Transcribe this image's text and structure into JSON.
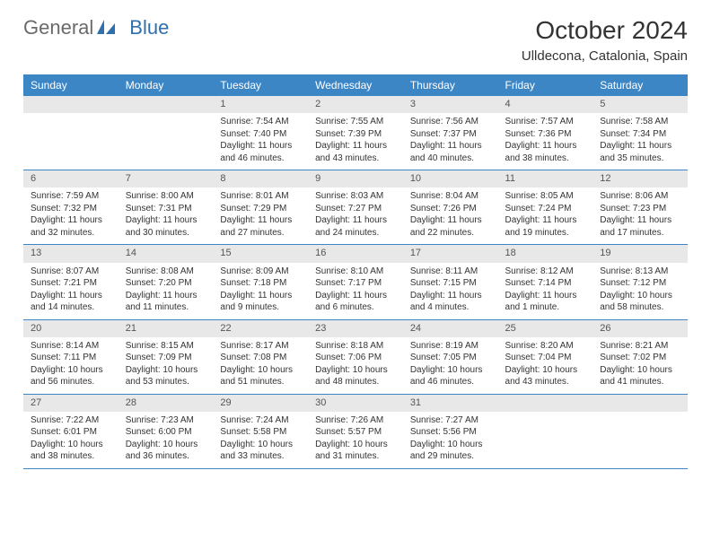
{
  "logo": {
    "text1": "General",
    "text2": "Blue"
  },
  "title": "October 2024",
  "subtitle": "Ulldecona, Catalonia, Spain",
  "daynames": [
    "Sunday",
    "Monday",
    "Tuesday",
    "Wednesday",
    "Thursday",
    "Friday",
    "Saturday"
  ],
  "colors": {
    "header_bg": "#3d86c6",
    "header_text": "#ffffff",
    "daynum_bg": "#e8e8e8",
    "border": "#3d86c6",
    "text": "#333333",
    "logo_gray": "#6a6a6a",
    "logo_blue": "#2f6fad"
  },
  "fontsize": {
    "title": 28,
    "subtitle": 15,
    "dayheader": 12,
    "daynum": 11,
    "daybody": 10
  },
  "weeks": [
    [
      {
        "n": "",
        "sr": "",
        "ss": "",
        "dl1": "",
        "dl2": ""
      },
      {
        "n": "",
        "sr": "",
        "ss": "",
        "dl1": "",
        "dl2": ""
      },
      {
        "n": "1",
        "sr": "Sunrise: 7:54 AM",
        "ss": "Sunset: 7:40 PM",
        "dl1": "Daylight: 11 hours",
        "dl2": "and 46 minutes."
      },
      {
        "n": "2",
        "sr": "Sunrise: 7:55 AM",
        "ss": "Sunset: 7:39 PM",
        "dl1": "Daylight: 11 hours",
        "dl2": "and 43 minutes."
      },
      {
        "n": "3",
        "sr": "Sunrise: 7:56 AM",
        "ss": "Sunset: 7:37 PM",
        "dl1": "Daylight: 11 hours",
        "dl2": "and 40 minutes."
      },
      {
        "n": "4",
        "sr": "Sunrise: 7:57 AM",
        "ss": "Sunset: 7:36 PM",
        "dl1": "Daylight: 11 hours",
        "dl2": "and 38 minutes."
      },
      {
        "n": "5",
        "sr": "Sunrise: 7:58 AM",
        "ss": "Sunset: 7:34 PM",
        "dl1": "Daylight: 11 hours",
        "dl2": "and 35 minutes."
      }
    ],
    [
      {
        "n": "6",
        "sr": "Sunrise: 7:59 AM",
        "ss": "Sunset: 7:32 PM",
        "dl1": "Daylight: 11 hours",
        "dl2": "and 32 minutes."
      },
      {
        "n": "7",
        "sr": "Sunrise: 8:00 AM",
        "ss": "Sunset: 7:31 PM",
        "dl1": "Daylight: 11 hours",
        "dl2": "and 30 minutes."
      },
      {
        "n": "8",
        "sr": "Sunrise: 8:01 AM",
        "ss": "Sunset: 7:29 PM",
        "dl1": "Daylight: 11 hours",
        "dl2": "and 27 minutes."
      },
      {
        "n": "9",
        "sr": "Sunrise: 8:03 AM",
        "ss": "Sunset: 7:27 PM",
        "dl1": "Daylight: 11 hours",
        "dl2": "and 24 minutes."
      },
      {
        "n": "10",
        "sr": "Sunrise: 8:04 AM",
        "ss": "Sunset: 7:26 PM",
        "dl1": "Daylight: 11 hours",
        "dl2": "and 22 minutes."
      },
      {
        "n": "11",
        "sr": "Sunrise: 8:05 AM",
        "ss": "Sunset: 7:24 PM",
        "dl1": "Daylight: 11 hours",
        "dl2": "and 19 minutes."
      },
      {
        "n": "12",
        "sr": "Sunrise: 8:06 AM",
        "ss": "Sunset: 7:23 PM",
        "dl1": "Daylight: 11 hours",
        "dl2": "and 17 minutes."
      }
    ],
    [
      {
        "n": "13",
        "sr": "Sunrise: 8:07 AM",
        "ss": "Sunset: 7:21 PM",
        "dl1": "Daylight: 11 hours",
        "dl2": "and 14 minutes."
      },
      {
        "n": "14",
        "sr": "Sunrise: 8:08 AM",
        "ss": "Sunset: 7:20 PM",
        "dl1": "Daylight: 11 hours",
        "dl2": "and 11 minutes."
      },
      {
        "n": "15",
        "sr": "Sunrise: 8:09 AM",
        "ss": "Sunset: 7:18 PM",
        "dl1": "Daylight: 11 hours",
        "dl2": "and 9 minutes."
      },
      {
        "n": "16",
        "sr": "Sunrise: 8:10 AM",
        "ss": "Sunset: 7:17 PM",
        "dl1": "Daylight: 11 hours",
        "dl2": "and 6 minutes."
      },
      {
        "n": "17",
        "sr": "Sunrise: 8:11 AM",
        "ss": "Sunset: 7:15 PM",
        "dl1": "Daylight: 11 hours",
        "dl2": "and 4 minutes."
      },
      {
        "n": "18",
        "sr": "Sunrise: 8:12 AM",
        "ss": "Sunset: 7:14 PM",
        "dl1": "Daylight: 11 hours",
        "dl2": "and 1 minute."
      },
      {
        "n": "19",
        "sr": "Sunrise: 8:13 AM",
        "ss": "Sunset: 7:12 PM",
        "dl1": "Daylight: 10 hours",
        "dl2": "and 58 minutes."
      }
    ],
    [
      {
        "n": "20",
        "sr": "Sunrise: 8:14 AM",
        "ss": "Sunset: 7:11 PM",
        "dl1": "Daylight: 10 hours",
        "dl2": "and 56 minutes."
      },
      {
        "n": "21",
        "sr": "Sunrise: 8:15 AM",
        "ss": "Sunset: 7:09 PM",
        "dl1": "Daylight: 10 hours",
        "dl2": "and 53 minutes."
      },
      {
        "n": "22",
        "sr": "Sunrise: 8:17 AM",
        "ss": "Sunset: 7:08 PM",
        "dl1": "Daylight: 10 hours",
        "dl2": "and 51 minutes."
      },
      {
        "n": "23",
        "sr": "Sunrise: 8:18 AM",
        "ss": "Sunset: 7:06 PM",
        "dl1": "Daylight: 10 hours",
        "dl2": "and 48 minutes."
      },
      {
        "n": "24",
        "sr": "Sunrise: 8:19 AM",
        "ss": "Sunset: 7:05 PM",
        "dl1": "Daylight: 10 hours",
        "dl2": "and 46 minutes."
      },
      {
        "n": "25",
        "sr": "Sunrise: 8:20 AM",
        "ss": "Sunset: 7:04 PM",
        "dl1": "Daylight: 10 hours",
        "dl2": "and 43 minutes."
      },
      {
        "n": "26",
        "sr": "Sunrise: 8:21 AM",
        "ss": "Sunset: 7:02 PM",
        "dl1": "Daylight: 10 hours",
        "dl2": "and 41 minutes."
      }
    ],
    [
      {
        "n": "27",
        "sr": "Sunrise: 7:22 AM",
        "ss": "Sunset: 6:01 PM",
        "dl1": "Daylight: 10 hours",
        "dl2": "and 38 minutes."
      },
      {
        "n": "28",
        "sr": "Sunrise: 7:23 AM",
        "ss": "Sunset: 6:00 PM",
        "dl1": "Daylight: 10 hours",
        "dl2": "and 36 minutes."
      },
      {
        "n": "29",
        "sr": "Sunrise: 7:24 AM",
        "ss": "Sunset: 5:58 PM",
        "dl1": "Daylight: 10 hours",
        "dl2": "and 33 minutes."
      },
      {
        "n": "30",
        "sr": "Sunrise: 7:26 AM",
        "ss": "Sunset: 5:57 PM",
        "dl1": "Daylight: 10 hours",
        "dl2": "and 31 minutes."
      },
      {
        "n": "31",
        "sr": "Sunrise: 7:27 AM",
        "ss": "Sunset: 5:56 PM",
        "dl1": "Daylight: 10 hours",
        "dl2": "and 29 minutes."
      },
      {
        "n": "",
        "sr": "",
        "ss": "",
        "dl1": "",
        "dl2": ""
      },
      {
        "n": "",
        "sr": "",
        "ss": "",
        "dl1": "",
        "dl2": ""
      }
    ]
  ]
}
